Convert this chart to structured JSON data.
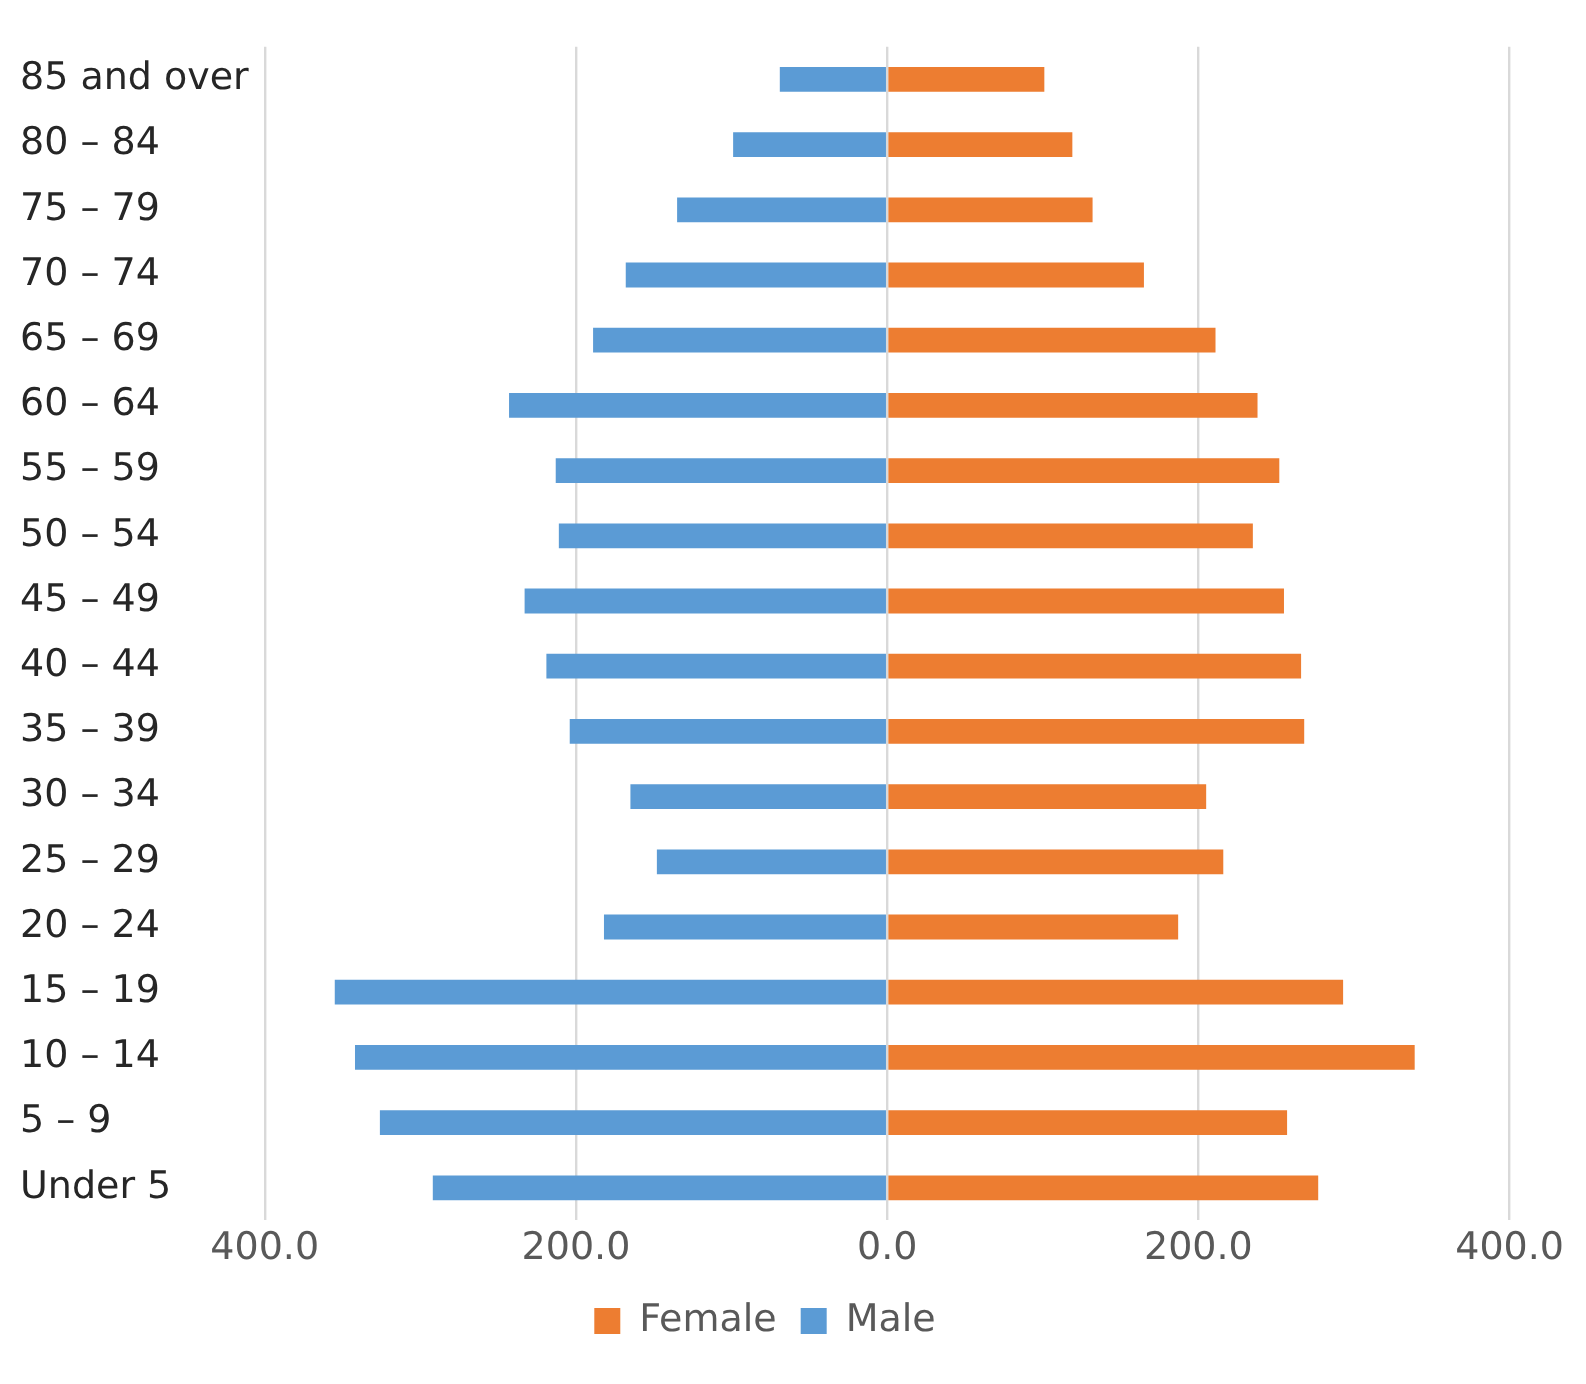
{
  "chart_data": {
    "type": "bar",
    "orientation": "horizontal",
    "stacked": true,
    "categories": [
      "85 and over",
      "80 – 84",
      "75 – 79",
      "70 – 74",
      "65 – 69",
      "60 – 64",
      "55 – 59",
      "50 – 54",
      "45 – 49",
      "40 – 44",
      "35 – 39",
      "30 – 34",
      "25 – 29",
      "20 – 24",
      "15 – 19",
      "10 – 14",
      "5 – 9",
      "Under 5"
    ],
    "series": [
      {
        "name": "Female",
        "color": "#ed7d31",
        "values": [
          101,
          119,
          132,
          165,
          211,
          238,
          252,
          235,
          255,
          266,
          268,
          205,
          216,
          187,
          293,
          339,
          257,
          277
        ]
      },
      {
        "name": "Male",
        "color": "#5b9bd5",
        "values": [
          -69,
          -99,
          -135,
          -168,
          -189,
          -243,
          -213,
          -211,
          -233,
          -219,
          -204,
          -165,
          -148,
          -182,
          -355,
          -342,
          -326,
          -292
        ]
      }
    ],
    "xlim": [
      -400,
      400
    ],
    "xticks": [
      {
        "value": -400,
        "label": "400.0"
      },
      {
        "value": -200,
        "label": "200.0"
      },
      {
        "value": 0,
        "label": "0.0"
      },
      {
        "value": 200,
        "label": "200.0"
      },
      {
        "value": 400,
        "label": "400.0"
      }
    ],
    "grid": "x",
    "legend": "bottom"
  }
}
